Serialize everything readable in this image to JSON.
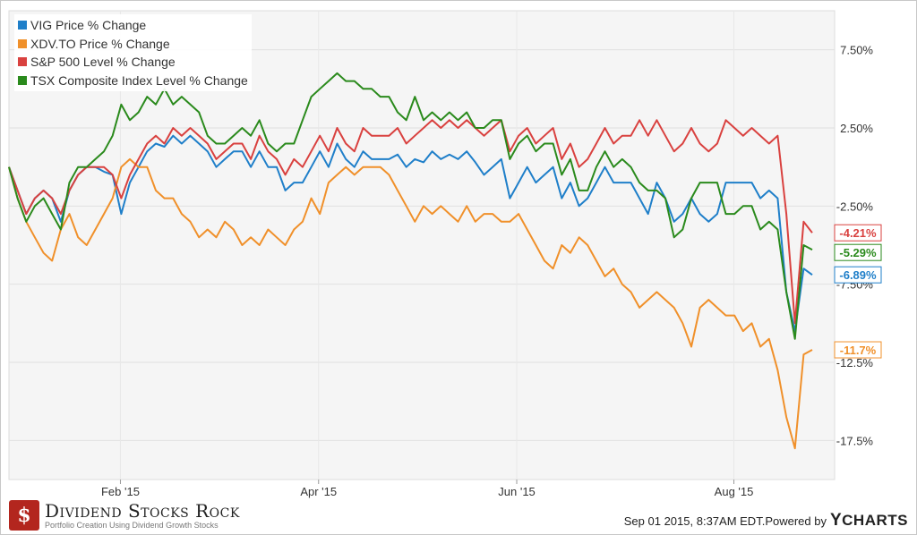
{
  "chart_data": {
    "type": "line",
    "x_ticks": [
      "Feb '15",
      "Apr '15",
      "Jun '15",
      "Aug '15"
    ],
    "y_ticks": [
      "7.50%",
      "2.50%",
      "-2.50%",
      "-7.50%",
      "-12.5%",
      "-17.5%"
    ],
    "ylim": [
      -20.0,
      10.0
    ],
    "grid": true,
    "legend_position": "top-left",
    "series": [
      {
        "name": "VIG Price % Change",
        "color": "#1f7fc9",
        "end_label": "-6.89%",
        "values": [
          0.0,
          -1.5,
          -3.0,
          -2.0,
          -1.5,
          -2.0,
          -3.5,
          -1.5,
          -0.5,
          0.0,
          0.0,
          -0.3,
          -0.5,
          -3.0,
          -1.0,
          0.0,
          1.0,
          1.5,
          1.3,
          2.0,
          1.5,
          2.0,
          1.5,
          1.0,
          0.0,
          0.5,
          1.0,
          1.0,
          0.0,
          1.0,
          0.0,
          0.0,
          -1.5,
          -1.0,
          -1.0,
          0.0,
          1.0,
          0.0,
          1.5,
          0.5,
          0.0,
          1.0,
          0.5,
          0.5,
          0.5,
          0.8,
          0.0,
          0.5,
          0.3,
          1.0,
          0.5,
          0.8,
          0.5,
          1.0,
          0.3,
          -0.5,
          0.0,
          0.5,
          -2.0,
          -1.0,
          0.0,
          -1.0,
          -0.5,
          0.0,
          -2.0,
          -1.0,
          -2.5,
          -2.0,
          -1.0,
          0.0,
          -1.0,
          -1.0,
          -1.0,
          -2.0,
          -3.0,
          -1.0,
          -2.0,
          -3.5,
          -3.0,
          -2.0,
          -3.0,
          -3.5,
          -3.0,
          -1.0,
          -1.0,
          -1.0,
          -1.0,
          -2.0,
          -1.5,
          -2.0,
          -8.0,
          -10.5,
          -6.5,
          -6.9
        ]
      },
      {
        "name": "XDV.TO Price % Change",
        "color": "#f0902a",
        "end_label": "-11.7%",
        "values": [
          0.0,
          -2.0,
          -3.5,
          -4.5,
          -5.5,
          -6.0,
          -4.0,
          -3.0,
          -4.5,
          -5.0,
          -4.0,
          -3.0,
          -2.0,
          0.0,
          0.5,
          0.0,
          0.0,
          -1.5,
          -2.0,
          -2.0,
          -3.0,
          -3.5,
          -4.5,
          -4.0,
          -4.5,
          -3.5,
          -4.0,
          -5.0,
          -4.5,
          -5.0,
          -4.0,
          -4.5,
          -5.0,
          -4.0,
          -3.5,
          -2.0,
          -3.0,
          -1.0,
          -0.5,
          0.0,
          -0.5,
          0.0,
          0.0,
          0.0,
          -0.5,
          -1.5,
          -2.5,
          -3.5,
          -2.5,
          -3.0,
          -2.5,
          -3.0,
          -3.5,
          -2.5,
          -3.5,
          -3.0,
          -3.0,
          -3.5,
          -3.5,
          -3.0,
          -4.0,
          -5.0,
          -6.0,
          -6.5,
          -5.0,
          -5.5,
          -4.5,
          -5.0,
          -6.0,
          -7.0,
          -6.5,
          -7.5,
          -8.0,
          -9.0,
          -8.5,
          -8.0,
          -8.5,
          -9.0,
          -10.0,
          -11.5,
          -9.0,
          -8.5,
          -9.0,
          -9.5,
          -9.5,
          -10.5,
          -10.0,
          -11.5,
          -11.0,
          -13.0,
          -16.0,
          -18.0,
          -12.0,
          -11.7
        ]
      },
      {
        "name": "S&P 500 Level % Change",
        "color": "#d9413f",
        "end_label": "-4.21%",
        "values": [
          0.0,
          -1.5,
          -3.0,
          -2.0,
          -1.5,
          -2.0,
          -3.0,
          -1.5,
          -0.5,
          0.0,
          0.0,
          0.0,
          -0.5,
          -2.0,
          -0.5,
          0.5,
          1.5,
          2.0,
          1.5,
          2.5,
          2.0,
          2.5,
          2.0,
          1.5,
          0.5,
          1.0,
          1.5,
          1.5,
          0.5,
          2.0,
          1.0,
          0.5,
          -0.5,
          0.5,
          0.0,
          1.0,
          2.0,
          1.0,
          2.5,
          1.5,
          1.0,
          2.5,
          2.0,
          2.0,
          2.0,
          2.5,
          1.5,
          2.0,
          2.5,
          3.0,
          2.5,
          3.0,
          2.5,
          3.0,
          2.5,
          2.0,
          2.5,
          3.0,
          1.0,
          2.0,
          2.5,
          1.5,
          2.0,
          2.5,
          0.5,
          1.5,
          0.0,
          0.5,
          1.5,
          2.5,
          1.5,
          2.0,
          2.0,
          3.0,
          2.0,
          3.0,
          2.0,
          1.0,
          1.5,
          2.5,
          1.5,
          1.0,
          1.5,
          3.0,
          2.5,
          2.0,
          2.5,
          2.0,
          1.5,
          2.0,
          -3.0,
          -10.0,
          -3.5,
          -4.21
        ]
      },
      {
        "name": "TSX Composite Index Level % Change",
        "color": "#2a8a1c",
        "end_label": "-5.29%",
        "values": [
          0.0,
          -2.0,
          -3.5,
          -2.5,
          -2.0,
          -3.0,
          -4.0,
          -1.0,
          0.0,
          0.0,
          0.5,
          1.0,
          2.0,
          4.0,
          3.0,
          3.5,
          4.5,
          4.0,
          5.0,
          4.0,
          4.5,
          4.0,
          3.5,
          2.0,
          1.5,
          1.5,
          2.0,
          2.5,
          2.0,
          3.0,
          1.5,
          1.0,
          1.5,
          1.5,
          3.0,
          4.5,
          5.0,
          5.5,
          6.0,
          5.5,
          5.5,
          5.0,
          5.0,
          4.5,
          4.5,
          3.5,
          3.0,
          4.5,
          3.0,
          3.5,
          3.0,
          3.5,
          3.0,
          3.5,
          2.5,
          2.5,
          3.0,
          3.0,
          0.5,
          1.5,
          2.0,
          1.0,
          1.5,
          1.5,
          -0.5,
          0.5,
          -1.5,
          -1.5,
          0.0,
          1.0,
          0.0,
          0.5,
          0.0,
          -1.0,
          -1.5,
          -1.5,
          -2.0,
          -4.5,
          -4.0,
          -2.0,
          -1.0,
          -1.0,
          -1.0,
          -3.0,
          -3.0,
          -2.5,
          -2.5,
          -4.0,
          -3.5,
          -4.0,
          -8.0,
          -11.0,
          -5.0,
          -5.29
        ]
      }
    ]
  },
  "footer": {
    "logo_mark": "$",
    "brand": "Dividend Stocks Rock",
    "tagline": "Portfolio Creation Using Dividend Growth Stocks",
    "timestamp": "Sep 01 2015, 8:37AM EDT.",
    "powered_by": "Powered by",
    "ycharts_y": "Y",
    "ycharts_rest": "CHARTS"
  }
}
